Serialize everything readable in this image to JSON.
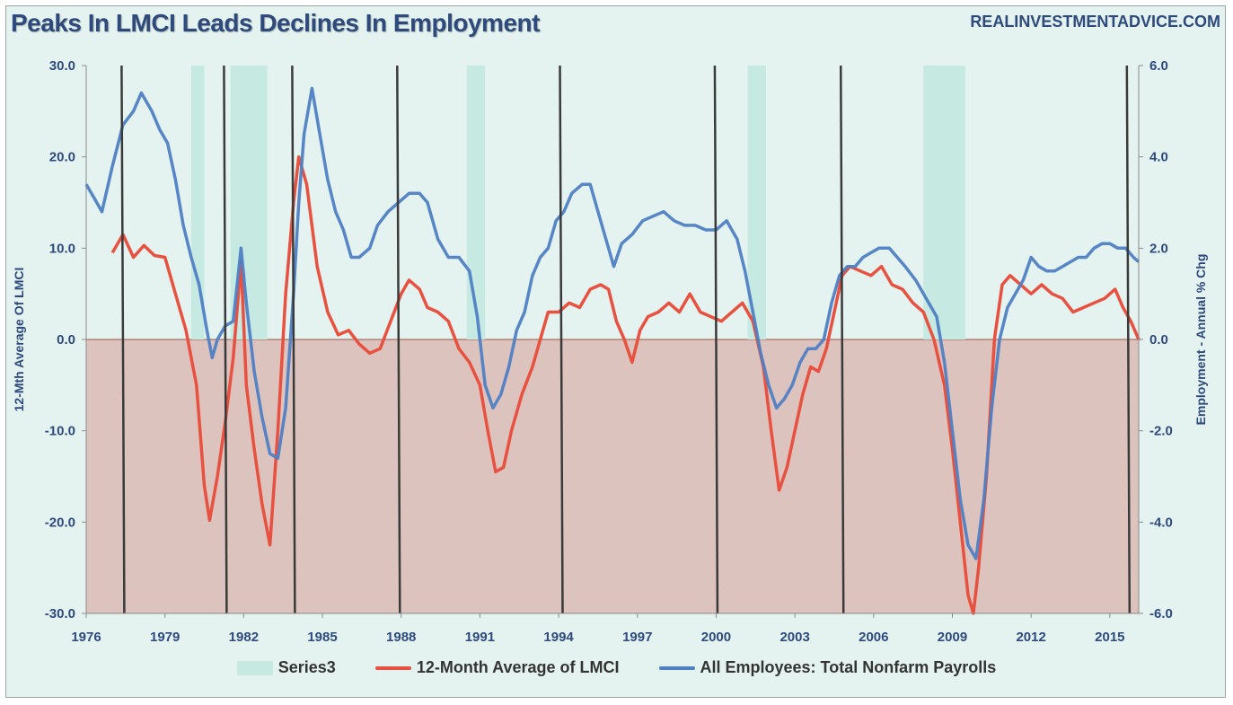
{
  "title": "Peaks In LMCI Leads Declines In Employment",
  "source": "REALINVESTMENTADVICE.COM",
  "colors": {
    "lmci": "#e8513f",
    "payrolls": "#4f7fc4",
    "recession": "#c6e9e2",
    "negative_zone": "#dcc3bd",
    "positive_zone": "#e4f3ef",
    "peak_line": "#3a3a3a",
    "text": "#2e4a7d"
  },
  "chart_data": {
    "type": "line",
    "title": "Peaks In LMCI Leads Declines In Employment",
    "xlabel": "",
    "ylabel_left": "12-Mth Average Of LMCI",
    "ylabel_right": "Employment - Annual % Chg",
    "x_range": [
      1976,
      2016.1
    ],
    "x_ticks": [
      "1976",
      "1979",
      "1982",
      "1985",
      "1988",
      "1991",
      "1994",
      "1997",
      "2000",
      "2003",
      "2006",
      "2009",
      "2012",
      "2015"
    ],
    "ylim_left": [
      -30,
      30
    ],
    "ylim_right": [
      -6,
      6
    ],
    "yticks_left": [
      "30.0",
      "20.0",
      "10.0",
      "0.0",
      "-10.0",
      "-20.0",
      "-30.0"
    ],
    "yticks_right": [
      "6.0",
      "4.0",
      "2.0",
      "0.0",
      "-2.0",
      "-4.0",
      "-6.0"
    ],
    "grid": false,
    "legend_position": "bottom",
    "recessions": [
      [
        1980.0,
        1980.5
      ],
      [
        1981.5,
        1982.9
      ],
      [
        1990.5,
        1991.2
      ],
      [
        2001.2,
        2001.9
      ],
      [
        2007.9,
        2009.5
      ]
    ],
    "peak_lines": [
      1977.4,
      1981.3,
      1983.9,
      1987.9,
      1994.1,
      2000.0,
      2004.8,
      2015.7
    ],
    "series": [
      {
        "name": "Series3",
        "type": "area"
      },
      {
        "name": "12-Month Average of LMCI",
        "axis": "left",
        "points": [
          [
            1977.0,
            9.5
          ],
          [
            1977.4,
            11.5
          ],
          [
            1977.8,
            9.0
          ],
          [
            1978.2,
            10.3
          ],
          [
            1978.6,
            9.2
          ],
          [
            1979.0,
            9.0
          ],
          [
            1979.4,
            5.0
          ],
          [
            1979.8,
            1.0
          ],
          [
            1980.2,
            -5.0
          ],
          [
            1980.5,
            -16.0
          ],
          [
            1980.7,
            -19.8
          ],
          [
            1981.0,
            -15.0
          ],
          [
            1981.3,
            -9.0
          ],
          [
            1981.6,
            -2.0
          ],
          [
            1981.9,
            8.5
          ],
          [
            1982.1,
            -5.0
          ],
          [
            1982.4,
            -12.0
          ],
          [
            1982.7,
            -18.0
          ],
          [
            1983.0,
            -22.5
          ],
          [
            1983.3,
            -10.0
          ],
          [
            1983.6,
            5.0
          ],
          [
            1983.9,
            15.0
          ],
          [
            1984.1,
            20.0
          ],
          [
            1984.4,
            17.0
          ],
          [
            1984.8,
            8.0
          ],
          [
            1985.2,
            3.0
          ],
          [
            1985.6,
            0.5
          ],
          [
            1986.0,
            1.0
          ],
          [
            1986.4,
            -0.5
          ],
          [
            1986.8,
            -1.5
          ],
          [
            1987.2,
            -1.0
          ],
          [
            1987.6,
            2.0
          ],
          [
            1988.0,
            5.0
          ],
          [
            1988.3,
            6.5
          ],
          [
            1988.7,
            5.5
          ],
          [
            1989.0,
            3.5
          ],
          [
            1989.4,
            3.0
          ],
          [
            1989.8,
            2.0
          ],
          [
            1990.2,
            -1.0
          ],
          [
            1990.6,
            -2.5
          ],
          [
            1991.0,
            -5.0
          ],
          [
            1991.3,
            -10.0
          ],
          [
            1991.6,
            -14.5
          ],
          [
            1991.9,
            -14.0
          ],
          [
            1992.2,
            -10.0
          ],
          [
            1992.6,
            -6.0
          ],
          [
            1993.0,
            -3.0
          ],
          [
            1993.3,
            0.0
          ],
          [
            1993.6,
            3.0
          ],
          [
            1994.0,
            3.0
          ],
          [
            1994.4,
            4.0
          ],
          [
            1994.8,
            3.5
          ],
          [
            1995.2,
            5.5
          ],
          [
            1995.6,
            6.0
          ],
          [
            1995.9,
            5.5
          ],
          [
            1996.2,
            2.0
          ],
          [
            1996.5,
            0.0
          ],
          [
            1996.8,
            -2.5
          ],
          [
            1997.1,
            1.0
          ],
          [
            1997.4,
            2.5
          ],
          [
            1997.8,
            3.0
          ],
          [
            1998.2,
            4.0
          ],
          [
            1998.6,
            3.0
          ],
          [
            1999.0,
            5.0
          ],
          [
            1999.4,
            3.0
          ],
          [
            1999.8,
            2.5
          ],
          [
            2000.2,
            2.0
          ],
          [
            2000.6,
            3.0
          ],
          [
            2001.0,
            4.0
          ],
          [
            2001.4,
            2.0
          ],
          [
            2001.8,
            -3.0
          ],
          [
            2002.1,
            -10.0
          ],
          [
            2002.4,
            -16.5
          ],
          [
            2002.7,
            -14.0
          ],
          [
            2003.0,
            -10.0
          ],
          [
            2003.3,
            -6.0
          ],
          [
            2003.6,
            -3.0
          ],
          [
            2003.9,
            -3.5
          ],
          [
            2004.2,
            -1.0
          ],
          [
            2004.5,
            3.0
          ],
          [
            2004.8,
            7.0
          ],
          [
            2005.1,
            8.0
          ],
          [
            2005.5,
            7.5
          ],
          [
            2005.9,
            7.0
          ],
          [
            2006.3,
            8.0
          ],
          [
            2006.7,
            6.0
          ],
          [
            2007.1,
            5.5
          ],
          [
            2007.5,
            4.0
          ],
          [
            2007.9,
            3.0
          ],
          [
            2008.3,
            0.0
          ],
          [
            2008.7,
            -5.0
          ],
          [
            2009.0,
            -12.0
          ],
          [
            2009.3,
            -20.0
          ],
          [
            2009.6,
            -28.0
          ],
          [
            2009.8,
            -30.0
          ],
          [
            2010.0,
            -25.0
          ],
          [
            2010.3,
            -15.0
          ],
          [
            2010.6,
            0.0
          ],
          [
            2010.9,
            6.0
          ],
          [
            2011.2,
            7.0
          ],
          [
            2011.6,
            6.0
          ],
          [
            2012.0,
            5.0
          ],
          [
            2012.4,
            6.0
          ],
          [
            2012.8,
            5.0
          ],
          [
            2013.2,
            4.5
          ],
          [
            2013.6,
            3.0
          ],
          [
            2014.0,
            3.5
          ],
          [
            2014.4,
            4.0
          ],
          [
            2014.8,
            4.5
          ],
          [
            2015.2,
            5.5
          ],
          [
            2015.5,
            3.5
          ],
          [
            2015.8,
            2.0
          ],
          [
            2016.1,
            0.0
          ]
        ]
      },
      {
        "name": "All Employees: Total Nonfarm Payrolls",
        "axis": "right",
        "points": [
          [
            1976.0,
            3.4
          ],
          [
            1976.3,
            3.1
          ],
          [
            1976.6,
            2.8
          ],
          [
            1977.0,
            3.8
          ],
          [
            1977.4,
            4.7
          ],
          [
            1977.8,
            5.0
          ],
          [
            1978.1,
            5.4
          ],
          [
            1978.5,
            5.0
          ],
          [
            1978.8,
            4.6
          ],
          [
            1979.1,
            4.3
          ],
          [
            1979.4,
            3.5
          ],
          [
            1979.7,
            2.5
          ],
          [
            1980.0,
            1.8
          ],
          [
            1980.3,
            1.2
          ],
          [
            1980.6,
            0.2
          ],
          [
            1980.8,
            -0.4
          ],
          [
            1981.0,
            0.0
          ],
          [
            1981.3,
            0.3
          ],
          [
            1981.6,
            0.4
          ],
          [
            1981.9,
            2.0
          ],
          [
            1982.1,
            0.8
          ],
          [
            1982.4,
            -0.7
          ],
          [
            1982.7,
            -1.7
          ],
          [
            1983.0,
            -2.5
          ],
          [
            1983.3,
            -2.6
          ],
          [
            1983.6,
            -1.5
          ],
          [
            1983.9,
            1.0
          ],
          [
            1984.1,
            3.0
          ],
          [
            1984.3,
            4.5
          ],
          [
            1984.6,
            5.5
          ],
          [
            1984.9,
            4.5
          ],
          [
            1985.2,
            3.5
          ],
          [
            1985.5,
            2.8
          ],
          [
            1985.8,
            2.4
          ],
          [
            1986.1,
            1.8
          ],
          [
            1986.4,
            1.8
          ],
          [
            1986.8,
            2.0
          ],
          [
            1987.1,
            2.5
          ],
          [
            1987.5,
            2.8
          ],
          [
            1987.9,
            3.0
          ],
          [
            1988.3,
            3.2
          ],
          [
            1988.7,
            3.2
          ],
          [
            1989.0,
            3.0
          ],
          [
            1989.4,
            2.2
          ],
          [
            1989.8,
            1.8
          ],
          [
            1990.2,
            1.8
          ],
          [
            1990.6,
            1.5
          ],
          [
            1990.9,
            0.5
          ],
          [
            1991.2,
            -1.0
          ],
          [
            1991.5,
            -1.5
          ],
          [
            1991.8,
            -1.2
          ],
          [
            1992.1,
            -0.6
          ],
          [
            1992.4,
            0.2
          ],
          [
            1992.7,
            0.6
          ],
          [
            1993.0,
            1.4
          ],
          [
            1993.3,
            1.8
          ],
          [
            1993.6,
            2.0
          ],
          [
            1993.9,
            2.6
          ],
          [
            1994.2,
            2.8
          ],
          [
            1994.5,
            3.2
          ],
          [
            1994.9,
            3.4
          ],
          [
            1995.2,
            3.4
          ],
          [
            1995.5,
            2.8
          ],
          [
            1995.8,
            2.2
          ],
          [
            1996.1,
            1.6
          ],
          [
            1996.4,
            2.1
          ],
          [
            1996.8,
            2.3
          ],
          [
            1997.2,
            2.6
          ],
          [
            1997.6,
            2.7
          ],
          [
            1998.0,
            2.8
          ],
          [
            1998.4,
            2.6
          ],
          [
            1998.8,
            2.5
          ],
          [
            1999.2,
            2.5
          ],
          [
            1999.6,
            2.4
          ],
          [
            2000.0,
            2.4
          ],
          [
            2000.4,
            2.6
          ],
          [
            2000.8,
            2.2
          ],
          [
            2001.1,
            1.5
          ],
          [
            2001.4,
            0.6
          ],
          [
            2001.7,
            -0.3
          ],
          [
            2002.0,
            -1.0
          ],
          [
            2002.3,
            -1.5
          ],
          [
            2002.6,
            -1.3
          ],
          [
            2002.9,
            -1.0
          ],
          [
            2003.2,
            -0.5
          ],
          [
            2003.5,
            -0.2
          ],
          [
            2003.8,
            -0.2
          ],
          [
            2004.1,
            0.0
          ],
          [
            2004.4,
            0.8
          ],
          [
            2004.7,
            1.4
          ],
          [
            2005.0,
            1.6
          ],
          [
            2005.3,
            1.6
          ],
          [
            2005.6,
            1.8
          ],
          [
            2005.9,
            1.9
          ],
          [
            2006.2,
            2.0
          ],
          [
            2006.6,
            2.0
          ],
          [
            2006.9,
            1.8
          ],
          [
            2007.2,
            1.6
          ],
          [
            2007.6,
            1.3
          ],
          [
            2008.0,
            0.9
          ],
          [
            2008.4,
            0.5
          ],
          [
            2008.7,
            -0.5
          ],
          [
            2009.0,
            -2.0
          ],
          [
            2009.3,
            -3.5
          ],
          [
            2009.6,
            -4.5
          ],
          [
            2009.9,
            -4.8
          ],
          [
            2010.2,
            -3.5
          ],
          [
            2010.5,
            -1.5
          ],
          [
            2010.8,
            0.0
          ],
          [
            2011.1,
            0.7
          ],
          [
            2011.4,
            1.0
          ],
          [
            2011.7,
            1.3
          ],
          [
            2012.0,
            1.8
          ],
          [
            2012.3,
            1.6
          ],
          [
            2012.6,
            1.5
          ],
          [
            2012.9,
            1.5
          ],
          [
            2013.2,
            1.6
          ],
          [
            2013.5,
            1.7
          ],
          [
            2013.8,
            1.8
          ],
          [
            2014.1,
            1.8
          ],
          [
            2014.4,
            2.0
          ],
          [
            2014.7,
            2.1
          ],
          [
            2015.0,
            2.1
          ],
          [
            2015.3,
            2.0
          ],
          [
            2015.6,
            2.0
          ],
          [
            2015.9,
            1.8
          ],
          [
            2016.1,
            1.7
          ]
        ]
      }
    ]
  }
}
